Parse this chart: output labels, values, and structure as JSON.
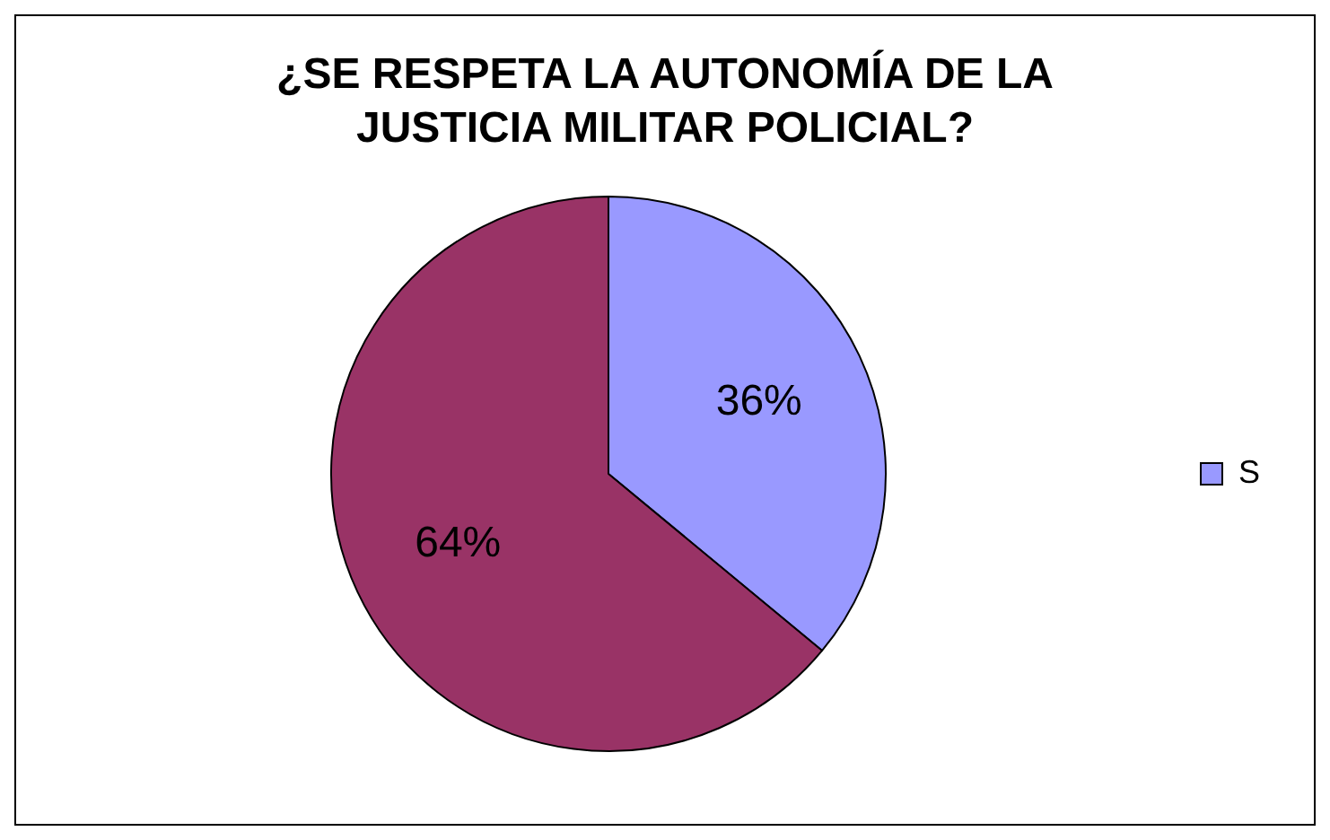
{
  "chart_data": {
    "type": "pie",
    "title": "¿SE RESPETA LA AUTONOMÍA DE LA JUSTICIA MILITAR POLICIAL?",
    "categories": [
      "S",
      null
    ],
    "values": [
      36,
      64
    ],
    "colors": [
      "#9999ff",
      "#993366"
    ],
    "value_labels": [
      "36%",
      "64%"
    ],
    "legend": "right"
  }
}
